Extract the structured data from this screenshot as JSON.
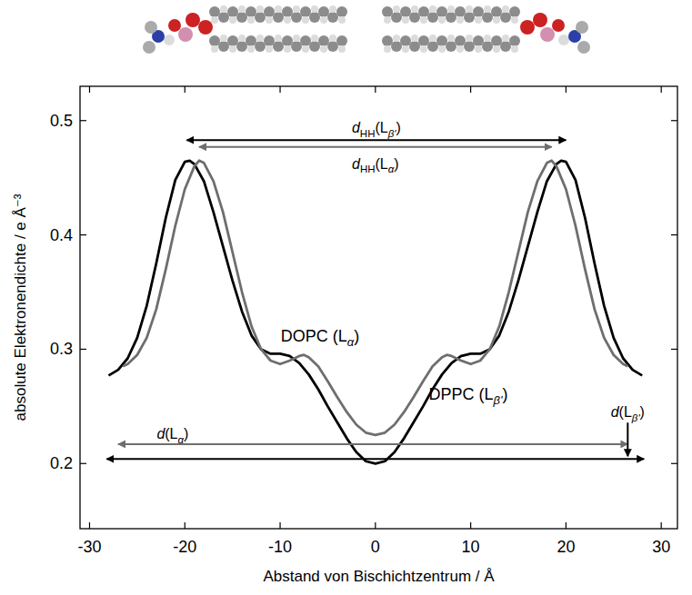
{
  "chart_data": {
    "type": "line",
    "x_label": "Abstand von Bischichtzentrum / Å",
    "y_label": "absolute Elektronendichte / e Å⁻³",
    "xlim": [
      -31,
      31.7
    ],
    "ylim": [
      0.143,
      0.53
    ],
    "xticks": [
      -30,
      -20,
      -10,
      0,
      10,
      20,
      30
    ],
    "yticks": [
      0.2,
      0.3,
      0.4,
      0.5
    ],
    "grid": false,
    "series": [
      {
        "name": "DPPC (Lβ')",
        "color": "#000000",
        "line_style": "solid",
        "x": [
          -28,
          -27,
          -26,
          -25,
          -24,
          -23,
          -22,
          -21,
          -20,
          -19.5,
          -19,
          -18,
          -17,
          -16,
          -15,
          -14,
          -13,
          -12,
          -11,
          -10,
          -9,
          -8,
          -7,
          -6,
          -5,
          -4,
          -3,
          -2,
          -1,
          0,
          1,
          2,
          3,
          4,
          5,
          6,
          7,
          8,
          9,
          10,
          11,
          12,
          13,
          14,
          15,
          16,
          17,
          18,
          19,
          19.5,
          20,
          21,
          22,
          23,
          24,
          25,
          26,
          27,
          28
        ],
        "values": [
          0.277,
          0.282,
          0.292,
          0.31,
          0.338,
          0.375,
          0.415,
          0.448,
          0.464,
          0.465,
          0.462,
          0.447,
          0.42,
          0.39,
          0.36,
          0.333,
          0.312,
          0.3,
          0.296,
          0.296,
          0.294,
          0.288,
          0.278,
          0.265,
          0.25,
          0.236,
          0.222,
          0.21,
          0.202,
          0.2,
          0.202,
          0.21,
          0.222,
          0.236,
          0.25,
          0.265,
          0.278,
          0.288,
          0.294,
          0.296,
          0.296,
          0.3,
          0.312,
          0.333,
          0.36,
          0.39,
          0.42,
          0.447,
          0.462,
          0.465,
          0.464,
          0.448,
          0.415,
          0.375,
          0.338,
          0.31,
          0.292,
          0.282,
          0.277
        ]
      },
      {
        "name": "DOPC (Lα)",
        "color": "#6e6e6e",
        "line_style": "solid",
        "x": [
          -26.5,
          -26,
          -25,
          -24,
          -23,
          -22,
          -21,
          -20,
          -19,
          -18.5,
          -18,
          -17,
          -16,
          -15,
          -14,
          -13,
          -12,
          -11,
          -10,
          -9,
          -8,
          -7.5,
          -7,
          -6,
          -5,
          -4,
          -3,
          -2,
          -1,
          0,
          1,
          2,
          3,
          4,
          5,
          6,
          7,
          7.5,
          8,
          9,
          10,
          11,
          12,
          13,
          14,
          15,
          16,
          17,
          18,
          18.5,
          19,
          20,
          21,
          22,
          23,
          24,
          25,
          26,
          26.5
        ],
        "values": [
          0.285,
          0.287,
          0.295,
          0.31,
          0.335,
          0.37,
          0.408,
          0.44,
          0.46,
          0.465,
          0.463,
          0.447,
          0.42,
          0.385,
          0.35,
          0.32,
          0.3,
          0.29,
          0.287,
          0.29,
          0.294,
          0.295,
          0.293,
          0.285,
          0.272,
          0.258,
          0.245,
          0.234,
          0.227,
          0.225,
          0.227,
          0.234,
          0.245,
          0.258,
          0.272,
          0.285,
          0.293,
          0.295,
          0.294,
          0.29,
          0.287,
          0.29,
          0.3,
          0.32,
          0.35,
          0.385,
          0.42,
          0.447,
          0.463,
          0.465,
          0.46,
          0.44,
          0.408,
          0.37,
          0.335,
          0.31,
          0.295,
          0.287,
          0.285
        ]
      }
    ],
    "annotations": [
      {
        "text": "dHH(Lβ')",
        "x": [
          -19.8,
          20
        ],
        "y": 0.483,
        "color": "#000000"
      },
      {
        "text": "dHH(Lα)",
        "x": [
          -18.5,
          18.5
        ],
        "y": 0.477,
        "color": "#6e6e6e"
      },
      {
        "text": "d(Lα)",
        "x": [
          -27,
          26.5
        ],
        "y": 0.217,
        "color": "#6e6e6e"
      },
      {
        "text": "d(Lβ')",
        "x": [
          -28.2,
          28.2
        ],
        "y": 0.204,
        "color": "#000000"
      }
    ]
  }
}
